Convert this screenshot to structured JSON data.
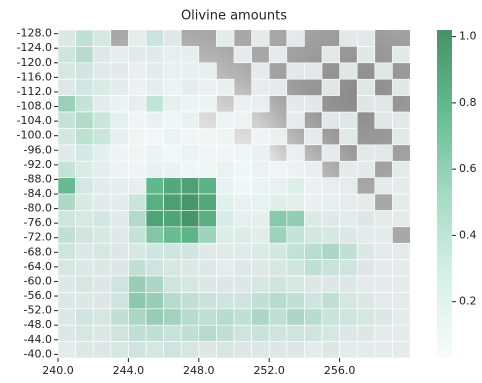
{
  "chart_data": {
    "type": "heatmap",
    "title": "Olivine amounts",
    "x_bins": [
      240,
      241,
      242,
      243,
      244,
      245,
      246,
      247,
      248,
      249,
      250,
      251,
      252,
      253,
      254,
      255,
      256,
      257,
      258,
      259,
      260
    ],
    "y_bins": [
      -129,
      -124.5,
      -120,
      -115.5,
      -111,
      -106.5,
      -102,
      -97.5,
      -93,
      -88.5,
      -84,
      -79.5,
      -75,
      -70.5,
      -66,
      -61.5,
      -57,
      -52.5,
      -48,
      -43.5,
      -39
    ],
    "xlim": [
      240,
      260
    ],
    "ylim": [
      -129,
      -39
    ],
    "xticks": [
      {
        "value": 240,
        "label": "240.0"
      },
      {
        "value": 244,
        "label": "244.0"
      },
      {
        "value": 248,
        "label": "248.0"
      },
      {
        "value": 252,
        "label": "252.0"
      },
      {
        "value": 256,
        "label": "256.0"
      }
    ],
    "yticks": [
      {
        "value": -128,
        "label": "-128.0"
      },
      {
        "value": -124,
        "label": "-124.0"
      },
      {
        "value": -120,
        "label": "-120.0"
      },
      {
        "value": -116,
        "label": "-116.0"
      },
      {
        "value": -112,
        "label": "-112.0"
      },
      {
        "value": -108,
        "label": "-108.0"
      },
      {
        "value": -104,
        "label": "-104.0"
      },
      {
        "value": -100,
        "label": "-100.0"
      },
      {
        "value": -96,
        "label": "-96.0"
      },
      {
        "value": -92,
        "label": "-92.0"
      },
      {
        "value": -88,
        "label": "-88.0"
      },
      {
        "value": -84,
        "label": "-84.0"
      },
      {
        "value": -80,
        "label": "-80.0"
      },
      {
        "value": -76,
        "label": "-76.0"
      },
      {
        "value": -72,
        "label": "-72.0"
      },
      {
        "value": -68,
        "label": "-68.0"
      },
      {
        "value": -64,
        "label": "-64.0"
      },
      {
        "value": -60,
        "label": "-60.0"
      },
      {
        "value": -56,
        "label": "-56.0"
      },
      {
        "value": -52,
        "label": "-52.0"
      },
      {
        "value": -48,
        "label": "-48.0"
      },
      {
        "value": -44,
        "label": "-44.0"
      },
      {
        "value": -40,
        "label": "-40.0"
      }
    ],
    "clim": [
      0.03,
      1.02
    ],
    "cticks": [
      0.2,
      0.4,
      0.6,
      0.8,
      {
        "value": 1.0,
        "label": "1.0"
      }
    ],
    "colormap": [
      "#f4fbfb",
      "#cdeee3",
      "#8fd3b6",
      "#41ae76",
      "#1e7a45"
    ],
    "alpha": 0.82,
    "values": [
      [
        0.1,
        0.3,
        0.15,
        null,
        0.05,
        0.25,
        0.1,
        null,
        null,
        0.05,
        null,
        0.05,
        null,
        0.05,
        null,
        null,
        0.05,
        0.05,
        null,
        null
      ],
      [
        0.2,
        0.35,
        0.1,
        0.05,
        0.1,
        0.1,
        0.05,
        0.05,
        null,
        null,
        0.05,
        null,
        0.05,
        null,
        null,
        0.05,
        null,
        0.05,
        null,
        0.05
      ],
      [
        0.15,
        0.2,
        0.1,
        0.1,
        0.05,
        0.1,
        0.05,
        0.05,
        0.05,
        null,
        null,
        0.05,
        null,
        0.05,
        0.05,
        null,
        0.05,
        null,
        0.05,
        null
      ],
      [
        0.1,
        0.2,
        0.15,
        0.1,
        0.05,
        0.1,
        0.05,
        0.1,
        0.05,
        0.05,
        null,
        0.05,
        0.05,
        null,
        null,
        0.05,
        null,
        0.05,
        null,
        0.05
      ],
      [
        0.5,
        0.3,
        0.1,
        0.05,
        0.1,
        0.35,
        0.1,
        0.05,
        0.05,
        null,
        0.05,
        0.05,
        null,
        0.05,
        0.05,
        null,
        null,
        0.05,
        0.05,
        null
      ],
      [
        0.3,
        0.4,
        0.3,
        0.1,
        0.05,
        0.1,
        0.05,
        0.1,
        null,
        0.05,
        0.05,
        null,
        null,
        0.05,
        null,
        0.05,
        0.05,
        null,
        0.05,
        0.05
      ],
      [
        0.2,
        0.35,
        0.3,
        0.1,
        0.05,
        0.05,
        0.1,
        0.05,
        0.05,
        0.05,
        null,
        0.05,
        0.05,
        null,
        0.05,
        null,
        0.05,
        null,
        null,
        0.05
      ],
      [
        0.1,
        0.2,
        0.1,
        0.05,
        0.05,
        0.1,
        0.05,
        0.1,
        0.05,
        0.05,
        0.05,
        0.1,
        null,
        0.05,
        null,
        0.05,
        null,
        0.05,
        0.05,
        null
      ],
      [
        0.3,
        0.15,
        0.1,
        0.05,
        0.05,
        0.1,
        0.1,
        0.05,
        0.05,
        0.1,
        0.05,
        0.1,
        0.05,
        0.05,
        0.05,
        null,
        0.05,
        0.05,
        null,
        0.05
      ],
      [
        0.7,
        0.2,
        0.1,
        0.1,
        0.1,
        0.75,
        0.85,
        0.9,
        0.8,
        0.1,
        0.05,
        0.1,
        0.1,
        0.15,
        0.05,
        0.05,
        0.05,
        null,
        0.05,
        0.05
      ],
      [
        0.4,
        0.15,
        0.1,
        0.1,
        0.3,
        0.8,
        0.9,
        0.95,
        0.85,
        0.15,
        0.1,
        0.1,
        0.15,
        0.1,
        0.05,
        0.05,
        0.05,
        0.05,
        null,
        0.05
      ],
      [
        0.2,
        0.15,
        0.2,
        0.1,
        0.4,
        0.85,
        0.85,
        0.95,
        0.8,
        0.2,
        0.1,
        0.1,
        0.6,
        0.55,
        0.15,
        0.1,
        0.05,
        0.1,
        0.05,
        0.05
      ],
      [
        0.3,
        0.2,
        0.15,
        0.1,
        0.3,
        0.6,
        0.7,
        0.75,
        0.5,
        0.15,
        0.15,
        0.1,
        0.5,
        0.3,
        0.2,
        0.15,
        0.1,
        0.05,
        0.05,
        null
      ],
      [
        0.2,
        0.1,
        0.15,
        0.1,
        0.15,
        0.2,
        0.2,
        0.2,
        0.1,
        0.1,
        0.1,
        0.15,
        0.2,
        0.3,
        0.35,
        0.4,
        0.3,
        0.1,
        0.05,
        0.05
      ],
      [
        0.15,
        0.1,
        0.1,
        0.1,
        0.3,
        0.2,
        0.15,
        0.1,
        0.1,
        0.05,
        0.1,
        0.1,
        0.15,
        0.2,
        0.3,
        0.25,
        0.2,
        0.1,
        0.05,
        0.05
      ],
      [
        0.1,
        0.15,
        0.1,
        0.2,
        0.5,
        0.4,
        0.2,
        0.15,
        0.1,
        0.1,
        0.1,
        0.15,
        0.2,
        0.15,
        0.1,
        0.1,
        0.1,
        0.05,
        0.05,
        0.05
      ],
      [
        0.1,
        0.1,
        0.1,
        0.2,
        0.55,
        0.5,
        0.35,
        0.3,
        0.25,
        0.2,
        0.2,
        0.3,
        0.35,
        0.3,
        0.2,
        0.3,
        0.15,
        0.1,
        0.05,
        0.05
      ],
      [
        0.1,
        0.2,
        0.15,
        0.3,
        0.4,
        0.5,
        0.45,
        0.35,
        0.3,
        0.35,
        0.3,
        0.4,
        0.3,
        0.4,
        0.35,
        0.25,
        0.2,
        0.15,
        0.1,
        0.05
      ],
      [
        0.1,
        0.15,
        0.1,
        0.2,
        0.3,
        0.3,
        0.25,
        0.3,
        0.35,
        0.3,
        0.2,
        0.25,
        0.2,
        0.2,
        0.2,
        0.15,
        0.1,
        0.1,
        0.05,
        0.05
      ],
      [
        0.05,
        0.1,
        0.1,
        0.15,
        0.2,
        0.15,
        0.2,
        0.15,
        0.1,
        0.15,
        0.1,
        0.1,
        0.1,
        0.1,
        0.05,
        0.1,
        0.05,
        0.05,
        0.05,
        0.05
      ]
    ]
  }
}
